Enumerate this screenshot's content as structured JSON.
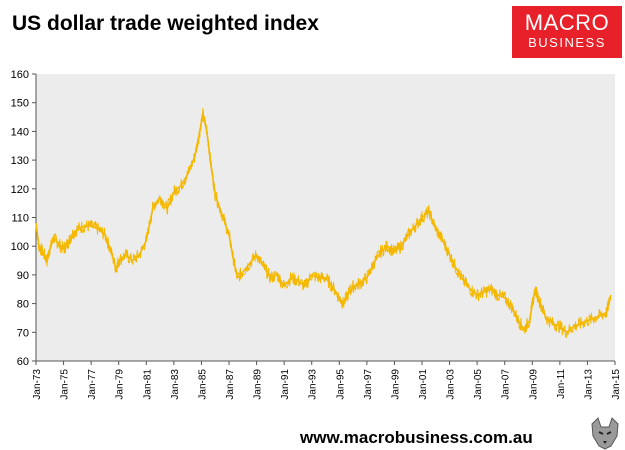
{
  "header": {
    "title": "US dollar trade weighted index",
    "logo_line1": "MACRO",
    "logo_line2": "BUSINESS"
  },
  "footer": {
    "website": "www.macrobusiness.com.au"
  },
  "colors": {
    "line": "#f5b800",
    "plot_bg": "#ececec",
    "logo_bg": "#e8202a"
  },
  "chart_data": {
    "type": "line",
    "title": "US dollar trade weighted index",
    "xlabel": "",
    "ylabel": "",
    "ylim": [
      60,
      160
    ],
    "yticks": [
      60,
      70,
      80,
      90,
      100,
      110,
      120,
      130,
      140,
      150,
      160
    ],
    "xlim": [
      1973.0,
      2015.0
    ],
    "xtick_labels": [
      "Jan-73",
      "Jan-75",
      "Jan-77",
      "Jan-79",
      "Jan-81",
      "Jan-83",
      "Jan-85",
      "Jan-87",
      "Jan-89",
      "Jan-91",
      "Jan-93",
      "Jan-95",
      "Jan-97",
      "Jan-99",
      "Jan-01",
      "Jan-03",
      "Jan-05",
      "Jan-07",
      "Jan-09",
      "Jan-11",
      "Jan-13",
      "Jan-15"
    ],
    "grid": false,
    "legend": "none",
    "series": [
      {
        "x": [
          1973.0,
          1973.2,
          1973.5,
          1973.8,
          1974.0,
          1974.3,
          1974.6,
          1975.0,
          1975.3,
          1975.6,
          1976.0,
          1976.5,
          1977.0,
          1977.5,
          1978.0,
          1978.4,
          1978.8,
          1979.0,
          1979.5,
          1980.0,
          1980.5,
          1981.0,
          1981.5,
          1982.0,
          1982.5,
          1983.0,
          1983.5,
          1984.0,
          1984.5,
          1984.8,
          1985.1,
          1985.4,
          1985.7,
          1986.0,
          1986.5,
          1987.0,
          1987.3,
          1987.6,
          1988.0,
          1988.5,
          1989.0,
          1989.5,
          1990.0,
          1990.5,
          1991.0,
          1991.5,
          1992.0,
          1992.5,
          1993.0,
          1993.5,
          1994.0,
          1994.5,
          1995.0,
          1995.3,
          1995.7,
          1996.0,
          1996.5,
          1997.0,
          1997.5,
          1998.0,
          1998.5,
          1999.0,
          1999.5,
          2000.0,
          2000.5,
          2001.0,
          2001.5,
          2002.0,
          2002.5,
          2003.0,
          2003.5,
          2004.0,
          2004.5,
          2005.0,
          2005.5,
          2006.0,
          2006.5,
          2007.0,
          2007.5,
          2008.0,
          2008.4,
          2008.8,
          2009.2,
          2009.6,
          2010.0,
          2010.5,
          2011.0,
          2011.5,
          2012.0,
          2012.5,
          2013.0,
          2013.5,
          2014.0,
          2014.4,
          2014.7
        ],
        "y": [
          108,
          100,
          98,
          95,
          99,
          103,
          101,
          99,
          101,
          104,
          106,
          107,
          107,
          106,
          104,
          99,
          92,
          95,
          97,
          95,
          97,
          102,
          114,
          117,
          113,
          119,
          121,
          125,
          131,
          138,
          146,
          140,
          128,
          118,
          111,
          104,
          96,
          89,
          91,
          94,
          97,
          93,
          89,
          90,
          86,
          89,
          88,
          86,
          90,
          89,
          89,
          86,
          82,
          80,
          84,
          86,
          87,
          89,
          94,
          98,
          100,
          98,
          100,
          104,
          107,
          110,
          112,
          106,
          102,
          97,
          92,
          88,
          85,
          83,
          84,
          85,
          83,
          82,
          79,
          74,
          71,
          74,
          85,
          80,
          75,
          73,
          72,
          70,
          72,
          73,
          74,
          75,
          76,
          77,
          83
        ]
      }
    ]
  }
}
